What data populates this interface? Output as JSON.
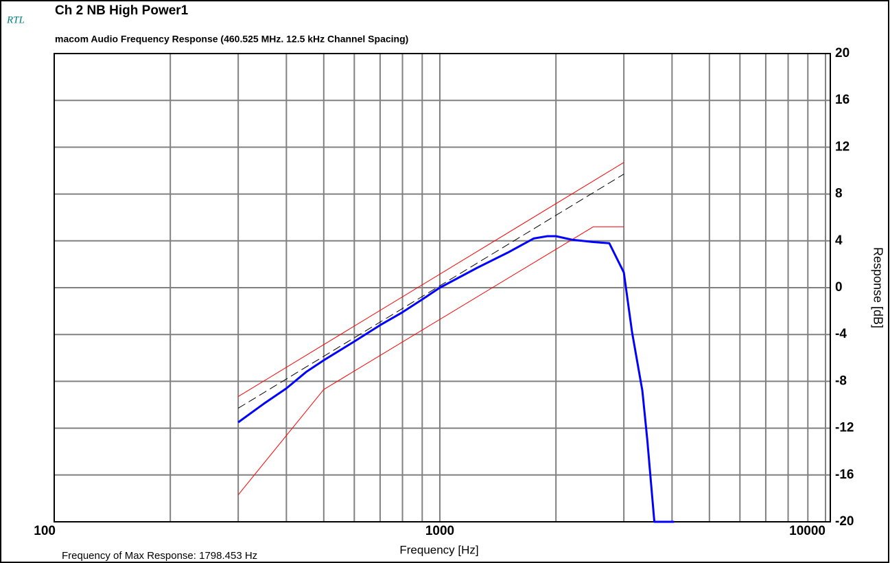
{
  "chart_data": {
    "type": "line",
    "logo": "RTL",
    "title": "Ch 2 NB High Power1",
    "subtitle": "macom Audio Frequency Response (460.525 MHz.  12.5 kHz Channel Spacing)",
    "x_label": "Frequency [Hz]",
    "y_label": "Response [dB]",
    "annotation": "Frequency of Max Response: 1798.453 Hz",
    "xscale": "log",
    "xlim": [
      100,
      10000
    ],
    "xticks": [
      100,
      1000,
      10000
    ],
    "xminor": [
      200,
      300,
      400,
      500,
      600,
      700,
      800,
      900,
      2000,
      3000,
      4000,
      5000,
      6000,
      7000,
      8000,
      9000
    ],
    "ylim": [
      -20,
      20
    ],
    "yticks": [
      -20,
      -16,
      -12,
      -8,
      -4,
      0,
      4,
      8,
      12,
      16,
      20
    ],
    "grid": true,
    "series": [
      {
        "color": "#ff0000",
        "width": 1,
        "style": "solid",
        "x": [
          300,
          3000
        ],
        "values": [
          -9.3,
          10.7
        ]
      },
      {
        "color": "#ff0000",
        "width": 1,
        "style": "solid",
        "x": [
          300,
          500,
          2500,
          3000
        ],
        "values": [
          -17.7,
          -8.7,
          5.2,
          5.2
        ]
      },
      {
        "color": "#000000",
        "width": 1,
        "style": "dashed",
        "x": [
          300,
          3000
        ],
        "values": [
          -10.3,
          9.7
        ]
      },
      {
        "color": "#0000ff",
        "width": 3,
        "style": "solid",
        "x": [
          300,
          350,
          400,
          450,
          500,
          600,
          700,
          800,
          900,
          1000,
          1250,
          1500,
          1750,
          1900,
          2000,
          2200,
          2500,
          2750,
          3000,
          3150,
          3350,
          3450,
          3600,
          4050
        ],
        "values": [
          -11.5,
          -9.9,
          -8.6,
          -7.2,
          -6.2,
          -4.6,
          -3.2,
          -2.1,
          -1.0,
          0,
          1.7,
          3.0,
          4.2,
          4.4,
          4.4,
          4.1,
          3.9,
          3.8,
          1.3,
          -3.8,
          -8.8,
          -13,
          -20,
          -20
        ]
      }
    ]
  }
}
